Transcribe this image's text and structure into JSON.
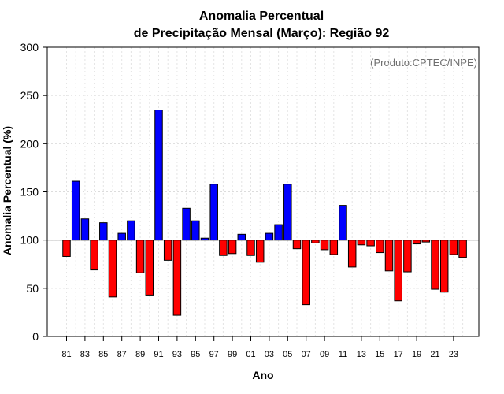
{
  "chart_data": {
    "type": "bar",
    "title": "Anomalia Percentual",
    "subtitle": "de Precipitação Mensal (Março): Região 92",
    "xlabel": "Ano",
    "ylabel": "Anomalia Percentual (%)",
    "annotation": "(Produto:CPTEC/INPE)",
    "ylim": [
      0,
      300
    ],
    "yticks": [
      0,
      50,
      100,
      150,
      200,
      250,
      300
    ],
    "baseline": 100,
    "grid": true,
    "categories": [
      "81",
      "82",
      "83",
      "84",
      "85",
      "86",
      "87",
      "88",
      "89",
      "90",
      "91",
      "92",
      "93",
      "94",
      "95",
      "96",
      "97",
      "98",
      "99",
      "00",
      "01",
      "02",
      "03",
      "04",
      "05",
      "06",
      "07",
      "08",
      "09",
      "10",
      "11",
      "12",
      "13",
      "14",
      "15",
      "16",
      "17",
      "18",
      "19",
      "20",
      "21",
      "22",
      "23",
      "24"
    ],
    "xtick_labels": [
      "81",
      "83",
      "85",
      "87",
      "89",
      "91",
      "93",
      "95",
      "97",
      "99",
      "01",
      "03",
      "05",
      "07",
      "09",
      "11",
      "13",
      "15",
      "17",
      "19",
      "21",
      "23"
    ],
    "values": [
      83,
      161,
      122,
      69,
      118,
      41,
      107,
      120,
      66,
      43,
      235,
      79,
      22,
      133,
      120,
      102,
      158,
      84,
      86,
      106,
      84,
      77,
      107,
      116,
      158,
      91,
      33,
      97,
      90,
      85,
      136,
      72,
      95,
      94,
      87,
      68,
      37,
      67,
      96,
      98,
      49,
      46,
      85,
      82
    ],
    "colors": {
      "above": "#0000ff",
      "below": "#ff0000"
    }
  }
}
